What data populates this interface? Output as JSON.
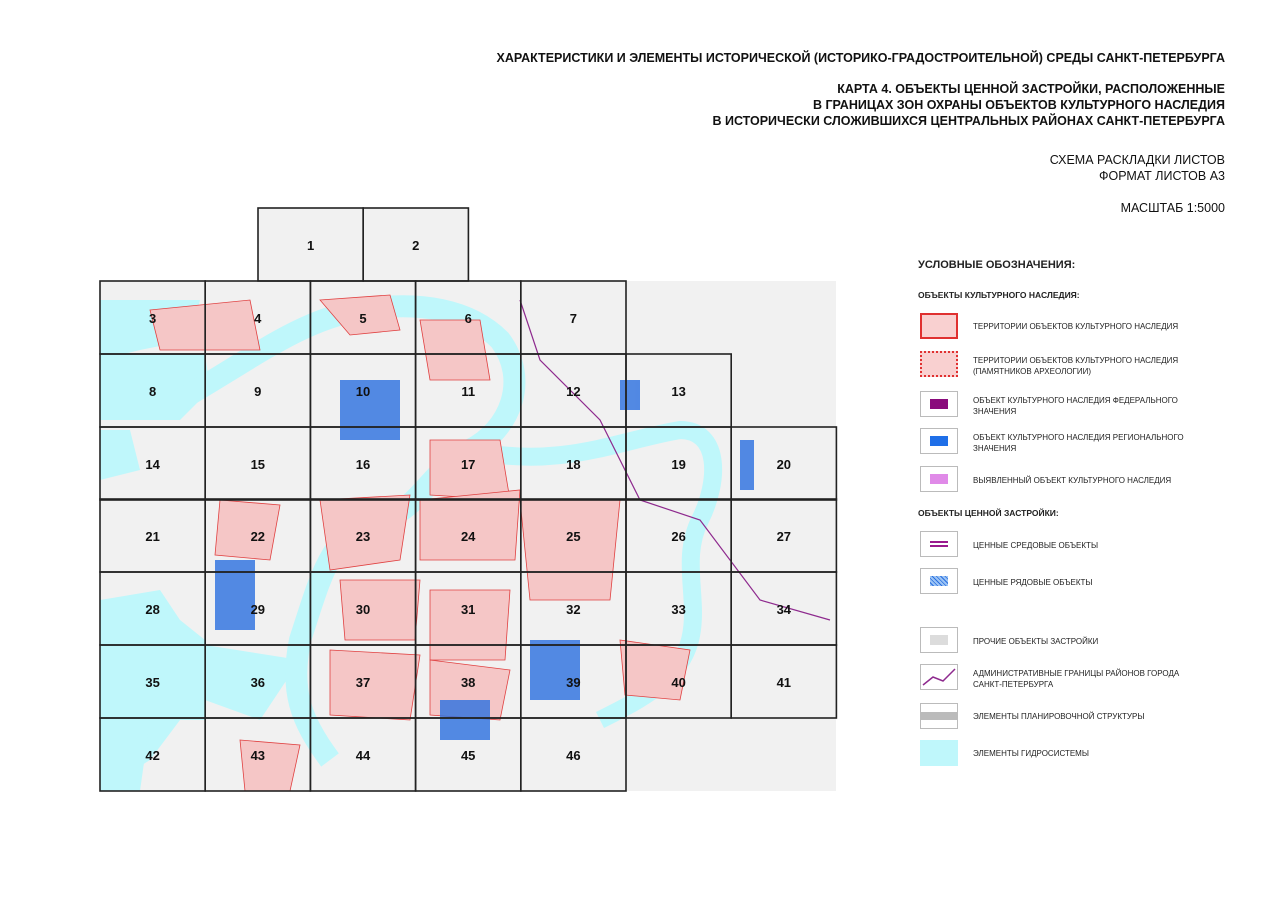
{
  "header": {
    "title": "ХАРАКТЕРИСТИКИ И ЭЛЕМЕНТЫ ИСТОРИЧЕСКОЙ (ИСТОРИКО-ГРАДОСТРОИТЕЛЬНОЙ) СРЕДЫ САНКТ-ПЕТЕРБУРГА",
    "map_title": [
      "КАРТА 4. ОБЪЕКТЫ ЦЕННОЙ ЗАСТРОЙКИ, РАСПОЛОЖЕННЫЕ",
      "В ГРАНИЦАХ ЗОН ОХРАНЫ ОБЪЕКТОВ КУЛЬТУРНОГО НАСЛЕДИЯ",
      "В ИСТОРИЧЕСКИ СЛОЖИВШИХСЯ ЦЕНТРАЛЬНЫХ РАЙОНАХ САНКТ-ПЕТЕРБУРГА"
    ],
    "scheme": [
      "СХЕМА РАСКЛАДКИ ЛИСТОВ",
      "ФОРМАТ ЛИСТОВ А3"
    ],
    "scale": "МАСШТАБ 1:5000"
  },
  "sheets": [
    "1",
    "2",
    "3",
    "4",
    "5",
    "6",
    "7",
    "8",
    "9",
    "10",
    "11",
    "12",
    "13",
    "14",
    "15",
    "16",
    "17",
    "18",
    "19",
    "20",
    "21",
    "22",
    "23",
    "24",
    "25",
    "26",
    "27",
    "28",
    "29",
    "30",
    "31",
    "32",
    "33",
    "34",
    "35",
    "36",
    "37",
    "38",
    "39",
    "40",
    "41",
    "42",
    "43",
    "44",
    "45",
    "46"
  ],
  "legend": {
    "title": "УСЛОВНЫЕ ОБОЗНАЧЕНИЯ:",
    "sections": [
      {
        "title": "ОБЪЕКТЫ КУЛЬТУРНОГО НАСЛЕДИЯ:",
        "items": [
          "ТЕРРИТОРИИ ОБЪЕКТОВ КУЛЬТУРНОГО НАСЛЕДИЯ",
          "ТЕРРИТОРИИ ОБЪЕКТОВ КУЛЬТУРНОГО НАСЛЕДИЯ (ПАМЯТНИКОВ АРХЕОЛОГИИ)",
          "ОБЪЕКТ КУЛЬТУРНОГО НАСЛЕДИЯ ФЕДЕРАЛЬНОГО ЗНАЧЕНИЯ",
          "ОБЪЕКТ КУЛЬТУРНОГО НАСЛЕДИЯ РЕГИОНАЛЬНОГО ЗНАЧЕНИЯ",
          "ВЫЯВЛЕННЫЙ ОБЪЕКТ КУЛЬТУРНОГО НАСЛЕДИЯ"
        ]
      },
      {
        "title": "ОБЪЕКТЫ ЦЕННОЙ ЗАСТРОЙКИ:",
        "items": [
          "ЦЕННЫЕ СРЕДОВЫЕ ОБЪЕКТЫ",
          "ЦЕННЫЕ РЯДОВЫЕ ОБЪЕКТЫ"
        ]
      }
    ],
    "other_items": [
      "ПРОЧИЕ ОБЪЕКТЫ ЗАСТРОЙКИ",
      "АДМИНИСТРАТИВНЫЕ ГРАНИЦЫ РАЙОНОВ ГОРОДА САНКТ-ПЕТЕРБУРГА",
      "ЭЛЕМЕНТЫ ПЛАНИРОВОЧНОЙ СТРУКТУРЫ",
      "ЭЛЕМЕНТЫ ГИДРОСИСТЕМЫ"
    ]
  }
}
